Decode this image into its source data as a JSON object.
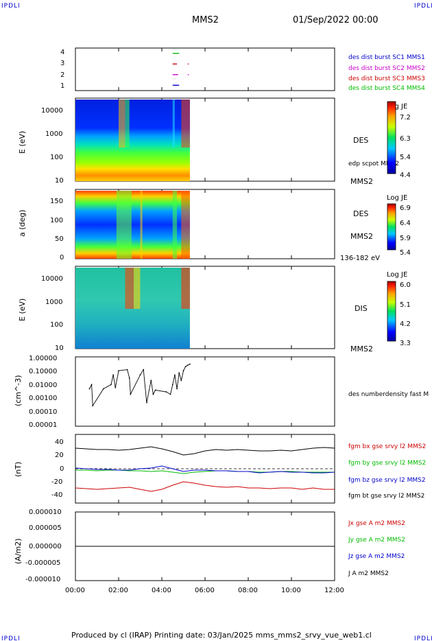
{
  "corner_label": "IPDLI",
  "header": {
    "spacecraft": "MMS2",
    "datetime": "01/Sep/2022 00:00"
  },
  "footer": "Produced by cl (IRAP)   Printing date: 03/Jan/2025   mms_mms2_srvy_vue_web1.cl",
  "time_axis": {
    "ticks": [
      "00:00",
      "02:00",
      "04:00",
      "06:00",
      "08:00",
      "10:00",
      "12:00"
    ],
    "range_hours": [
      0,
      12
    ]
  },
  "panels": {
    "burst": {
      "yticks": [
        "4",
        "3",
        "2",
        "1"
      ],
      "legend": [
        {
          "text": "des dist burst SC1 MMS1",
          "color": "#0000cc"
        },
        {
          "text": "des dist burst SC2 MMS2",
          "color": "#cc00cc"
        },
        {
          "text": "des dist burst SC3 MMS3",
          "color": "#cc0000"
        },
        {
          "text": "des dist burst SC4 MMS4",
          "color": "#00bb00"
        }
      ]
    },
    "des_energy": {
      "ylabel": "E (eV)",
      "yticks": [
        "10000",
        "1000",
        "100",
        "10"
      ],
      "label": "DES",
      "label2": "edp scpot MMS2",
      "label3": "MMS2",
      "cbar_title": "Log JE",
      "cbar_ticks": [
        "7.2",
        "6.3",
        "5.4",
        "4.4"
      ]
    },
    "des_pitch": {
      "ylabel": "a (deg)",
      "yticks": [
        "150",
        "100",
        "50",
        "0"
      ],
      "label": "DES",
      "label2": "MMS2",
      "label3": "136-182 eV",
      "cbar_title": "Log JE",
      "cbar_ticks": [
        "6.9",
        "6.4",
        "5.9",
        "5.4"
      ]
    },
    "dis_energy": {
      "ylabel": "E (eV)",
      "yticks": [
        "10000",
        "1000",
        "100",
        "10"
      ],
      "label": "DIS",
      "label2": "MMS2",
      "cbar_title": "Log JE",
      "cbar_ticks": [
        "6.0",
        "5.1",
        "4.2",
        "3.3"
      ]
    },
    "density": {
      "ylabel": "(cm^-3)",
      "yticks": [
        "1.00000",
        "0.10000",
        "0.01000",
        "0.00100",
        "0.00010",
        "0.00001"
      ],
      "legend": "des numberdensity fast M"
    },
    "bfield": {
      "ylabel": "(nT)",
      "yticks": [
        "40",
        "20",
        "0",
        "-20",
        "-40"
      ],
      "legend": [
        {
          "text": "fgm bx gse srvy l2 MMS2",
          "color": "#cc0000"
        },
        {
          "text": "fgm by gse srvy l2 MMS2",
          "color": "#00bb00"
        },
        {
          "text": "fgm bz gse srvy l2 MMS2",
          "color": "#0000cc"
        },
        {
          "text": "fgm bt gse srvy l2 MMS2",
          "color": "#000000"
        }
      ]
    },
    "current": {
      "ylabel": "(A/m2)",
      "yticks": [
        "0.000010",
        "0.000005",
        "0.000000",
        "-0.000005",
        "-0.000010"
      ],
      "legend": [
        {
          "text": "Jx gse A m2 MMS2",
          "color": "#cc0000"
        },
        {
          "text": "Jy gse A m2 MMS2",
          "color": "#00bb00"
        },
        {
          "text": "Jz gse A m2 MMS2",
          "color": "#0000cc"
        },
        {
          "text": "J A m2 MMS2",
          "color": "#000000"
        }
      ]
    }
  },
  "chart_data": [
    {
      "type": "line",
      "name": "burst-availability",
      "ylim": [
        0.5,
        4.5
      ],
      "series": [
        {
          "name": "des dist burst SC4 MMS4",
          "y": 4,
          "segments": [
            [
              4.5,
              4.8
            ]
          ]
        },
        {
          "name": "des dist burst SC3 MMS3",
          "y": 3,
          "segments": [
            [
              4.5,
              4.7
            ],
            [
              5.2,
              5.25
            ]
          ]
        },
        {
          "name": "des dist burst SC2 MMS2",
          "y": 2,
          "segments": [
            [
              4.5,
              4.75
            ],
            [
              5.2,
              5.25
            ]
          ]
        },
        {
          "name": "des dist burst SC1 MMS1",
          "y": 1,
          "segments": [
            [
              4.5,
              4.8
            ]
          ]
        }
      ]
    },
    {
      "type": "heatmap",
      "name": "des-energy-spectrogram",
      "ylim": [
        10,
        30000
      ],
      "yscale": "log",
      "data_coverage_hours": [
        0,
        5.3
      ]
    },
    {
      "type": "heatmap",
      "name": "des-pitch-angle",
      "ylim": [
        0,
        180
      ],
      "data_coverage_hours": [
        0,
        5.3
      ]
    },
    {
      "type": "heatmap",
      "name": "dis-energy-spectrogram",
      "ylim": [
        10,
        30000
      ],
      "yscale": "log",
      "data_coverage_hours": [
        0,
        5.3
      ]
    },
    {
      "type": "line",
      "name": "des-number-density",
      "yscale": "log",
      "ylim": [
        1e-05,
        1.0
      ],
      "series": [
        {
          "name": "des numberdensity fast M",
          "x": [
            0.65,
            0.75,
            0.8,
            1.3,
            1.65,
            1.75,
            1.85,
            2.0,
            2.4,
            2.5,
            2.55,
            3.0,
            3.15,
            3.3,
            3.5,
            3.6,
            3.7,
            4.2,
            4.4,
            4.5,
            4.6,
            4.7,
            4.8,
            4.9,
            5.0,
            5.1,
            5.2,
            5.3
          ],
          "y": [
            0.005,
            0.01,
            0.0003,
            0.005,
            0.01,
            0.05,
            0.006,
            0.1,
            0.12,
            0.03,
            0.002,
            0.05,
            0.12,
            0.0005,
            0.02,
            0.002,
            0.004,
            0.003,
            0.002,
            0.01,
            0.05,
            0.005,
            0.07,
            0.02,
            0.1,
            0.2,
            0.25,
            0.3
          ]
        }
      ]
    },
    {
      "type": "line",
      "name": "fgm-magnetic-field",
      "ylim": [
        -50,
        50
      ],
      "x": [
        0,
        0.5,
        1,
        1.5,
        2,
        2.5,
        3,
        3.5,
        4,
        4.5,
        5,
        5.5,
        6,
        6.5,
        7,
        7.5,
        8,
        8.5,
        9,
        9.5,
        10,
        10.5,
        11,
        11.5,
        12
      ],
      "series": [
        {
          "name": "fgm bt gse srvy l2 MMS2",
          "color": "#000000",
          "values": [
            30,
            29,
            28,
            28,
            27,
            28,
            30,
            32,
            29,
            25,
            20,
            22,
            26,
            28,
            27,
            28,
            27,
            26,
            26,
            27,
            26,
            28,
            30,
            31,
            30
          ]
        },
        {
          "name": "fgm bx gse srvy l2 MMS2",
          "color": "#cc0000",
          "values": [
            -28,
            -29,
            -30,
            -29,
            -28,
            -27,
            -30,
            -33,
            -30,
            -24,
            -19,
            -21,
            -24,
            -26,
            -27,
            -26,
            -28,
            -28,
            -29,
            -28,
            -28,
            -30,
            -28,
            -30,
            -30
          ]
        },
        {
          "name": "fgm by gse srvy l2 MMS2",
          "color": "#00bb00",
          "values": [
            -2,
            -2,
            -3,
            -2,
            -2,
            -3,
            -3,
            -4,
            -3,
            -5,
            -7,
            -5,
            -4,
            -3,
            -3,
            -4,
            -4,
            -5,
            -5,
            -4,
            -4,
            -5,
            -5,
            -5,
            -5
          ]
        },
        {
          "name": "fgm bz gse srvy l2 MMS2",
          "color": "#0000cc",
          "values": [
            1,
            0,
            -1,
            -1,
            -2,
            -2,
            0,
            1,
            4,
            0,
            -4,
            -2,
            -2,
            -3,
            -3,
            -4,
            -4,
            -6,
            -5,
            -4,
            -5,
            -5,
            -6,
            -6,
            -5
          ]
        }
      ]
    },
    {
      "type": "line",
      "name": "fpi-current-density",
      "ylim": [
        -1e-05,
        1e-05
      ],
      "series": [
        {
          "name": "J A m2 MMS2",
          "x": [
            0,
            12
          ],
          "values": [
            0,
            0
          ]
        }
      ]
    }
  ]
}
